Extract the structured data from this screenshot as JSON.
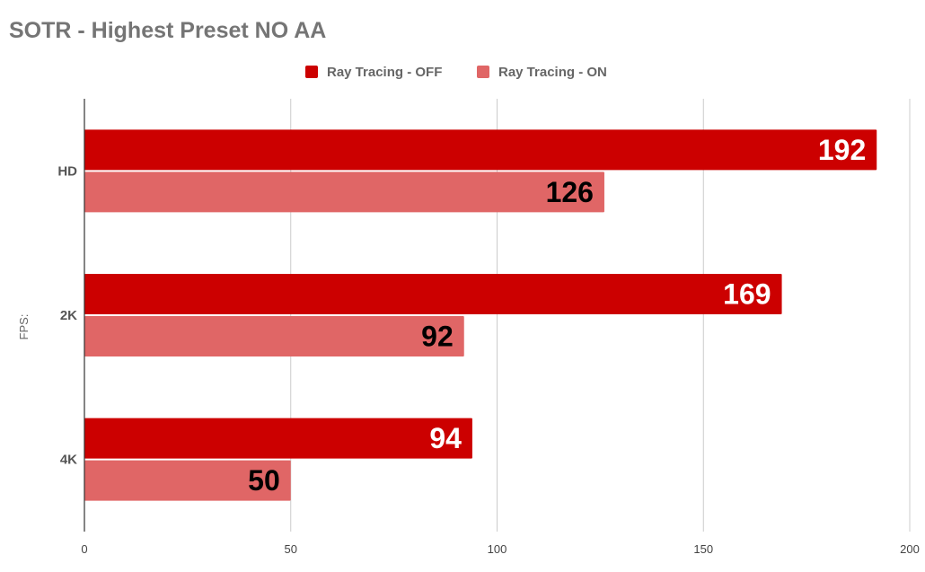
{
  "chart_data": {
    "type": "bar",
    "orientation": "horizontal",
    "title": "SOTR - Highest Preset NO AA",
    "ylabel": "FPS:",
    "xlabel": "",
    "categories": [
      "HD",
      "2K",
      "4K"
    ],
    "series": [
      {
        "name": "Ray Tracing - OFF",
        "values": [
          192,
          169,
          94
        ],
        "color": "#cc0000",
        "label_color": "#ffffff"
      },
      {
        "name": "Ray Tracing - ON",
        "values": [
          126,
          92,
          50
        ],
        "color": "#e06666",
        "label_color": "#000000"
      }
    ],
    "xlim": [
      0,
      200
    ],
    "x_ticks": [
      0,
      50,
      100,
      150,
      200
    ],
    "grid": true,
    "legend_position": "top-center",
    "data_labels": true
  }
}
